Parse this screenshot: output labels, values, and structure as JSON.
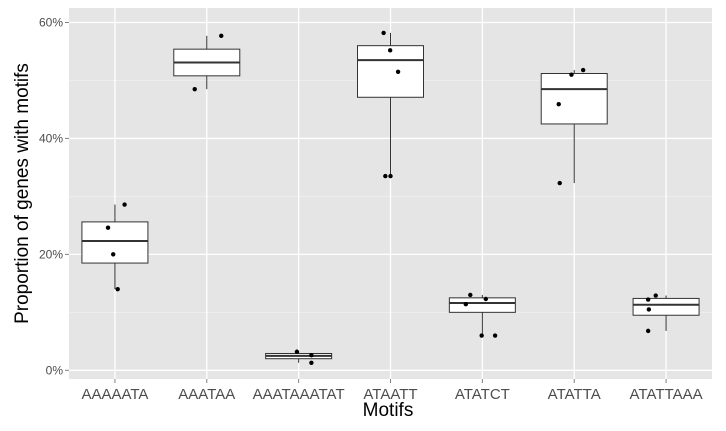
{
  "chart_data": {
    "type": "box",
    "xlabel": "Motifs",
    "ylabel": "Proportion of genes with motifs",
    "ylim": [
      -1.5,
      62.5
    ],
    "y_ticks": [
      0,
      20,
      40,
      60
    ],
    "y_tick_labels": [
      "0%",
      "20%",
      "40%",
      "60%"
    ],
    "grid": true,
    "colors": {
      "panel_background": "#e5e5e5",
      "grid_line": "#ffffff",
      "box_fill": "#ffffff",
      "box_stroke": "#333333",
      "point": "#000000"
    },
    "categories": [
      "AAAAATA",
      "AAATAA",
      "AAATAAATAT",
      "ATAATT",
      "ATATCT",
      "ATATTA",
      "ATATTAAA"
    ],
    "boxes": [
      {
        "category": "AAAAATA",
        "whisker_low": 14.0,
        "q1": 18.5,
        "median": 22.3,
        "q3": 25.6,
        "whisker_high": 28.6
      },
      {
        "category": "AAATAA",
        "whisker_low": 48.5,
        "q1": 50.8,
        "median": 53.1,
        "q3": 55.4,
        "whisker_high": 57.7
      },
      {
        "category": "AAATAAATAT",
        "whisker_low": 1.3,
        "q1": 2.0,
        "median": 2.5,
        "q3": 2.9,
        "whisker_high": 3.2
      },
      {
        "category": "ATAATT",
        "whisker_low": 33.5,
        "q1": 47.1,
        "median": 53.5,
        "q3": 56.0,
        "whisker_high": 58.2
      },
      {
        "category": "ATATCT",
        "whisker_low": 6.0,
        "q1": 10.0,
        "median": 11.6,
        "q3": 12.5,
        "whisker_high": 13.0
      },
      {
        "category": "ATATTA",
        "whisker_low": 32.3,
        "q1": 42.5,
        "median": 48.5,
        "q3": 51.2,
        "whisker_high": 51.8
      },
      {
        "category": "ATATTAAA",
        "whisker_low": 6.8,
        "q1": 9.5,
        "median": 11.3,
        "q3": 12.4,
        "whisker_high": 12.9
      }
    ],
    "points": [
      {
        "category": "AAAAATA",
        "jitter": -0.2,
        "y": 24.6
      },
      {
        "category": "AAAAATA",
        "jitter": -0.05,
        "y": 20.0
      },
      {
        "category": "AAAAATA",
        "jitter": 0.08,
        "y": 14.0
      },
      {
        "category": "AAAAATA",
        "jitter": 0.28,
        "y": 28.6
      },
      {
        "category": "AAATAA",
        "jitter": -0.35,
        "y": 48.5
      },
      {
        "category": "AAATAA",
        "jitter": 0.42,
        "y": 57.7
      },
      {
        "category": "AAATAAATAT",
        "jitter": -0.05,
        "y": 3.2
      },
      {
        "category": "AAATAAATAT",
        "jitter": 0.37,
        "y": 2.6
      },
      {
        "category": "AAATAAATAT",
        "jitter": 0.37,
        "y": 1.3
      },
      {
        "category": "ATAATT",
        "jitter": -0.2,
        "y": 58.2
      },
      {
        "category": "ATAATT",
        "jitter": -0.15,
        "y": 33.5
      },
      {
        "category": "ATAATT",
        "jitter": -0.01,
        "y": 55.2
      },
      {
        "category": "ATAATT",
        "jitter": 0.0,
        "y": 33.5
      },
      {
        "category": "ATAATT",
        "jitter": 0.22,
        "y": 51.5
      },
      {
        "category": "ATATCT",
        "jitter": -0.48,
        "y": 11.4
      },
      {
        "category": "ATATCT",
        "jitter": -0.35,
        "y": 13.0
      },
      {
        "category": "ATATCT",
        "jitter": -0.02,
        "y": 6.0
      },
      {
        "category": "ATATCT",
        "jitter": 0.1,
        "y": 12.3
      },
      {
        "category": "ATATCT",
        "jitter": 0.37,
        "y": 6.0
      },
      {
        "category": "ATATTA",
        "jitter": -0.42,
        "y": 32.3
      },
      {
        "category": "ATATTA",
        "jitter": -0.45,
        "y": 45.9
      },
      {
        "category": "ATATTA",
        "jitter": -0.08,
        "y": 51.0
      },
      {
        "category": "ATATTA",
        "jitter": 0.26,
        "y": 51.8
      },
      {
        "category": "ATATTAAA",
        "jitter": -0.52,
        "y": 12.2
      },
      {
        "category": "ATATTAAA",
        "jitter": -0.5,
        "y": 10.5
      },
      {
        "category": "ATATTAAA",
        "jitter": -0.52,
        "y": 6.8
      },
      {
        "category": "ATATTAAA",
        "jitter": -0.3,
        "y": 12.9
      }
    ]
  }
}
